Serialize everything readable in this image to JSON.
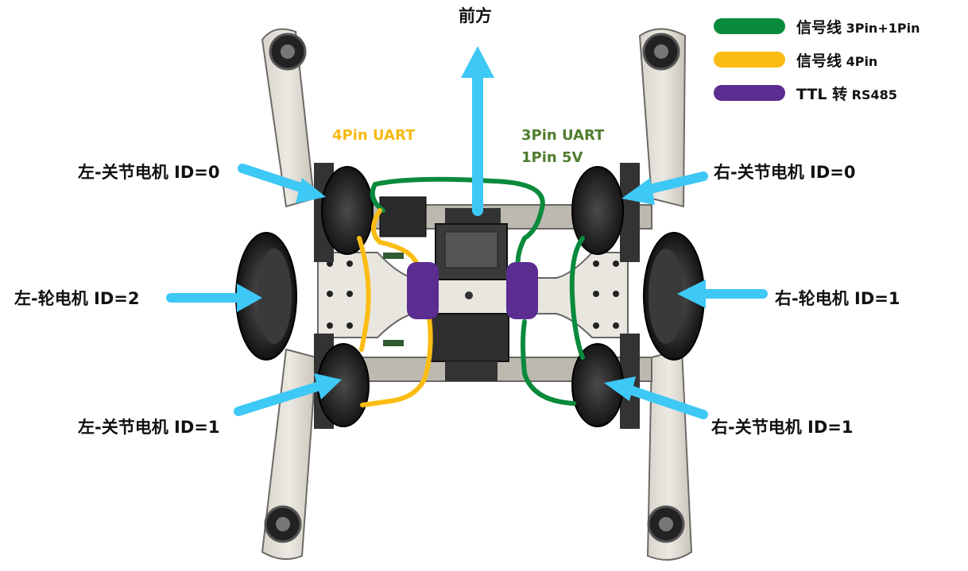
{
  "title": "前方",
  "colors": {
    "signal_3pin_1pin": "#0a8a3c",
    "signal_4pin": "#fbbc14",
    "ttl_rs485": "#5b2d91",
    "arrow": "#3ec8f5",
    "label_4pin": "#f5b912",
    "label_3pin": "#4f7d2f"
  },
  "legend": [
    {
      "main": "信号线",
      "sub": " 3Pin+1Pin",
      "color": "#0a8a3c"
    },
    {
      "main": "信号线",
      "sub": " 4Pin",
      "color": "#fbbc14"
    },
    {
      "main": "TTL 转",
      "sub": " RS485",
      "color": "#5b2d91"
    }
  ],
  "wire_labels": {
    "yellow": "4Pin UART",
    "green_line1": "3Pin UART",
    "green_line2": "1Pin 5V"
  },
  "motor_labels": {
    "left_joint_0": "左-关节电机 ID=0",
    "right_joint_0": "右-关节电机 ID=0",
    "left_wheel_2": "左-轮电机 ID=2",
    "right_wheel_1": "右-轮电机 ID=1",
    "left_joint_1": "左-关节电机 ID=1",
    "right_joint_1": "右-关节电机 ID=1"
  }
}
